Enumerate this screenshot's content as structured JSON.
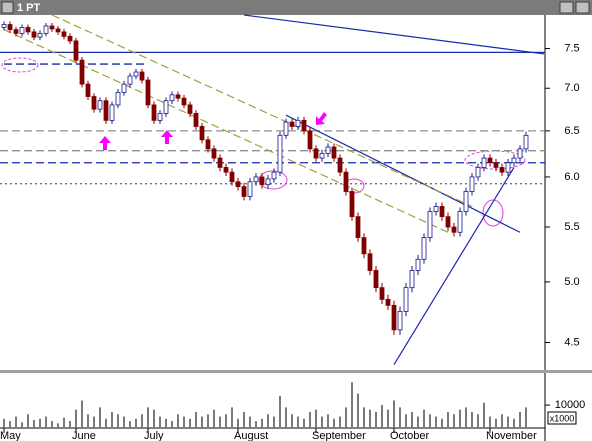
{
  "window_title": "1 PT",
  "chart_data": [
    {
      "type": "candlestick",
      "categories": [
        "May",
        null,
        null,
        null,
        null,
        null,
        null,
        null,
        null,
        null,
        null,
        null,
        "June",
        null,
        null,
        null,
        null,
        null,
        null,
        null,
        null,
        null,
        null,
        null,
        "July",
        null,
        null,
        null,
        null,
        null,
        null,
        null,
        null,
        null,
        null,
        null,
        null,
        null,
        null,
        "August",
        null,
        null,
        null,
        null,
        null,
        null,
        null,
        null,
        null,
        null,
        null,
        null,
        "September",
        null,
        null,
        null,
        null,
        null,
        null,
        null,
        null,
        null,
        null,
        null,
        null,
        "October",
        null,
        null,
        null,
        null,
        null,
        null,
        null,
        null,
        null,
        null,
        null,
        null,
        null,
        null,
        null,
        "November",
        null,
        null,
        null,
        null,
        null,
        null
      ],
      "open": [
        7.78,
        7.82,
        7.75,
        7.7,
        7.78,
        7.72,
        7.65,
        7.7,
        7.8,
        7.76,
        7.72,
        7.66,
        7.6,
        7.35,
        7.05,
        6.9,
        6.75,
        6.85,
        6.62,
        6.8,
        6.95,
        7.05,
        7.15,
        7.2,
        7.1,
        6.8,
        6.62,
        6.7,
        6.85,
        6.92,
        6.88,
        6.8,
        6.7,
        6.55,
        6.4,
        6.3,
        6.2,
        6.1,
        6.05,
        5.95,
        5.9,
        5.8,
        5.95,
        6.0,
        5.92,
        5.98,
        6.05,
        6.45,
        6.6,
        6.55,
        6.62,
        6.5,
        6.3,
        6.2,
        6.25,
        6.32,
        6.2,
        6.05,
        5.85,
        5.6,
        5.4,
        5.25,
        5.1,
        4.95,
        4.85,
        4.8,
        4.6,
        4.75,
        4.95,
        5.1,
        5.2,
        5.4,
        5.65,
        5.7,
        5.6,
        5.5,
        5.45,
        5.65,
        5.85,
        6.0,
        6.1,
        6.2,
        6.15,
        6.1,
        6.05,
        6.15,
        6.2,
        6.3
      ],
      "high": [
        7.86,
        7.86,
        7.79,
        7.82,
        7.82,
        7.76,
        7.74,
        7.84,
        7.84,
        7.8,
        7.76,
        7.7,
        7.64,
        7.39,
        7.09,
        6.94,
        6.89,
        6.89,
        6.84,
        6.99,
        7.09,
        7.19,
        7.24,
        7.24,
        7.14,
        6.84,
        6.74,
        6.89,
        6.96,
        6.96,
        6.92,
        6.84,
        6.74,
        6.59,
        6.44,
        6.34,
        6.24,
        6.14,
        6.09,
        5.99,
        5.94,
        5.99,
        6.04,
        6.04,
        6.02,
        6.09,
        6.49,
        6.64,
        6.64,
        6.66,
        6.66,
        6.54,
        6.34,
        6.29,
        6.36,
        6.36,
        6.24,
        6.09,
        5.89,
        5.64,
        5.44,
        5.29,
        5.14,
        4.99,
        4.89,
        4.84,
        4.79,
        4.99,
        5.14,
        5.24,
        5.44,
        5.69,
        5.74,
        5.74,
        5.64,
        5.54,
        5.69,
        5.89,
        6.04,
        6.14,
        6.24,
        6.24,
        6.19,
        6.14,
        6.19,
        6.24,
        6.34,
        6.49
      ],
      "low": [
        7.74,
        7.71,
        7.66,
        7.66,
        7.68,
        7.61,
        7.61,
        7.66,
        7.72,
        7.68,
        7.62,
        7.56,
        7.31,
        7.01,
        6.86,
        6.71,
        6.71,
        6.58,
        6.58,
        6.76,
        6.91,
        7.01,
        7.11,
        7.06,
        6.76,
        6.58,
        6.58,
        6.66,
        6.81,
        6.84,
        6.76,
        6.66,
        6.51,
        6.36,
        6.26,
        6.16,
        6.06,
        6.01,
        5.91,
        5.86,
        5.76,
        5.76,
        5.91,
        5.88,
        5.88,
        5.94,
        6.01,
        6.41,
        6.51,
        6.51,
        6.46,
        6.26,
        6.16,
        6.16,
        6.21,
        6.16,
        6.01,
        5.81,
        5.56,
        5.36,
        5.21,
        5.06,
        4.91,
        4.81,
        4.76,
        4.56,
        4.56,
        4.71,
        4.91,
        5.06,
        5.16,
        5.36,
        5.61,
        5.56,
        5.46,
        5.41,
        5.41,
        5.61,
        5.81,
        5.96,
        6.06,
        6.11,
        6.06,
        6.01,
        6.01,
        6.11,
        6.16,
        6.26
      ],
      "close": [
        7.82,
        7.75,
        7.7,
        7.78,
        7.72,
        7.65,
        7.7,
        7.8,
        7.76,
        7.72,
        7.66,
        7.6,
        7.35,
        7.05,
        6.9,
        6.75,
        6.85,
        6.62,
        6.8,
        6.95,
        7.05,
        7.15,
        7.2,
        7.1,
        6.8,
        6.62,
        6.7,
        6.85,
        6.92,
        6.88,
        6.8,
        6.7,
        6.55,
        6.4,
        6.3,
        6.2,
        6.1,
        6.05,
        5.95,
        5.9,
        5.8,
        5.95,
        6.0,
        5.92,
        5.98,
        6.05,
        6.45,
        6.6,
        6.55,
        6.62,
        6.5,
        6.3,
        6.2,
        6.25,
        6.32,
        6.2,
        6.05,
        5.85,
        5.6,
        5.4,
        5.25,
        5.1,
        4.95,
        4.85,
        4.8,
        4.6,
        4.75,
        4.95,
        5.1,
        5.2,
        5.4,
        5.65,
        5.7,
        5.6,
        5.5,
        5.45,
        5.65,
        5.85,
        6.0,
        6.1,
        6.2,
        6.15,
        6.1,
        6.05,
        6.15,
        6.2,
        6.3,
        6.45
      ],
      "up_color": "#1a1a8c",
      "down_color": "#800000",
      "log_scale": true,
      "ylim": [
        4.29,
        7.95
      ],
      "yticks": [
        4.5,
        {
          "value": 5,
          "label": "5.0"
        },
        5.5,
        {
          "value": 6,
          "label": "6.0"
        },
        6.5,
        {
          "value": 7,
          "label": "7.0"
        },
        7.5
      ],
      "levels": [
        {
          "value": 7.45,
          "color": "#1a2aa8",
          "dash": "solid"
        },
        {
          "value": 7.3,
          "color": "#1a2aa8",
          "dash": "dashed",
          "span": [
            0,
            24
          ]
        },
        {
          "value": 6.5,
          "color": "#909090",
          "dash": "dashed"
        },
        {
          "value": 6.28,
          "color": "#909090",
          "dash": "dashed"
        },
        {
          "value": 6.15,
          "color": "#1a2aa8",
          "dash": "dashed"
        },
        {
          "value": 5.93,
          "color": "#707070",
          "dash": "dotted"
        }
      ],
      "trendlines": [
        {
          "points": [
            [
              40,
              7.95
            ],
            [
              90,
              7.43
            ]
          ],
          "color": "#1a2aa8",
          "dash": "solid"
        },
        {
          "points": [
            [
              47,
              6.68
            ],
            [
              86,
              5.45
            ]
          ],
          "color": "#1a2aa8",
          "dash": "solid"
        },
        {
          "points": [
            [
              65,
              4.33
            ],
            [
              85,
              6.1
            ]
          ],
          "color": "#1a2aa8",
          "dash": "solid"
        },
        {
          "points": [
            [
              0,
              7.75
            ],
            [
              74,
              5.45
            ]
          ],
          "color": "#a0a040",
          "dash": "dashed"
        },
        {
          "points": [
            [
              8,
              7.95
            ],
            [
              78,
              5.7
            ]
          ],
          "color": "#a0a040",
          "dash": "dashed"
        }
      ]
    },
    {
      "type": "bar",
      "values": [
        4000,
        3000,
        5000,
        2500,
        6000,
        3500,
        4000,
        5000,
        3000,
        2000,
        4500,
        3000,
        8000,
        12000,
        6000,
        5000,
        9000,
        4000,
        7000,
        6000,
        5000,
        3000,
        4000,
        6000,
        9000,
        8000,
        5000,
        4000,
        3000,
        6000,
        5000,
        4000,
        7000,
        5000,
        6000,
        8000,
        5000,
        6000,
        9000,
        4000,
        7000,
        5000,
        3000,
        4000,
        6000,
        5000,
        14000,
        9000,
        6000,
        5000,
        4000,
        7000,
        8000,
        5000,
        6000,
        4000,
        5000,
        9000,
        20000,
        15000,
        9000,
        8000,
        7000,
        10000,
        8000,
        12000,
        9000,
        6000,
        7000,
        5000,
        8000,
        6000,
        5000,
        4000,
        7000,
        6000,
        8000,
        9000,
        7000,
        6000,
        11000,
        5000,
        4000,
        6000,
        5000,
        4000,
        7000,
        9000
      ],
      "color": "#7a7a7a",
      "ylim": [
        0,
        24000
      ],
      "yticks": [
        10000
      ],
      "unit_label": "x1000"
    }
  ]
}
